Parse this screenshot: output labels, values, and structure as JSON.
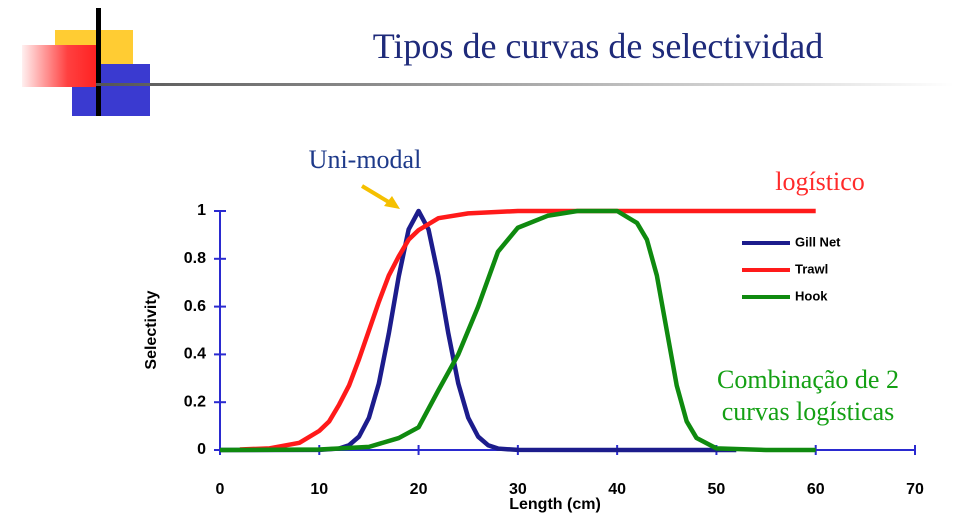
{
  "chart_data": {
    "type": "line",
    "title": "Tipos de curvas de selectividad",
    "xlabel": "Length (cm)",
    "ylabel": "Selectivity",
    "xlim": [
      0,
      70
    ],
    "xticks": [
      0,
      10,
      20,
      30,
      40,
      50,
      60,
      70
    ],
    "ylim": [
      0,
      1
    ],
    "yticks": [
      0,
      0.2,
      0.4,
      0.6,
      0.8,
      1
    ],
    "annotations": [
      "Uni-modal",
      "logístico",
      "Combinação de 2",
      "curvas logísticas"
    ],
    "series": [
      {
        "name": "Gill Net",
        "color": "#1c1c8c",
        "x": [
          0,
          10,
          12,
          13,
          14,
          15,
          16,
          17,
          18,
          19,
          20,
          21,
          22,
          23,
          24,
          25,
          26,
          27,
          28,
          30,
          52
        ],
        "values": [
          0,
          0.0003,
          0.006,
          0.02,
          0.056,
          0.135,
          0.278,
          0.487,
          0.726,
          0.923,
          1,
          0.923,
          0.726,
          0.487,
          0.278,
          0.135,
          0.056,
          0.02,
          0.006,
          0.0003,
          0
        ]
      },
      {
        "name": "Trawl",
        "color": "#ff1a1a",
        "x": [
          2,
          5,
          8,
          10,
          11,
          12,
          13,
          14,
          15,
          16,
          17,
          18,
          19,
          20,
          22,
          25,
          30,
          60
        ],
        "values": [
          0.002,
          0.007,
          0.03,
          0.08,
          0.12,
          0.19,
          0.27,
          0.38,
          0.5,
          0.62,
          0.73,
          0.81,
          0.88,
          0.92,
          0.97,
          0.99,
          1,
          1
        ]
      },
      {
        "name": "Hook",
        "color": "#0f8a0f",
        "x": [
          0,
          10,
          15,
          18,
          20,
          22,
          24,
          25,
          26,
          28,
          30,
          33,
          36,
          40,
          42,
          43,
          44,
          45,
          46,
          47,
          48,
          50,
          55,
          60
        ],
        "values": [
          0,
          0.002,
          0.013,
          0.05,
          0.095,
          0.25,
          0.4,
          0.5,
          0.6,
          0.83,
          0.93,
          0.98,
          1,
          1,
          0.95,
          0.88,
          0.73,
          0.5,
          0.27,
          0.12,
          0.05,
          0.007,
          0,
          0
        ]
      }
    ]
  }
}
